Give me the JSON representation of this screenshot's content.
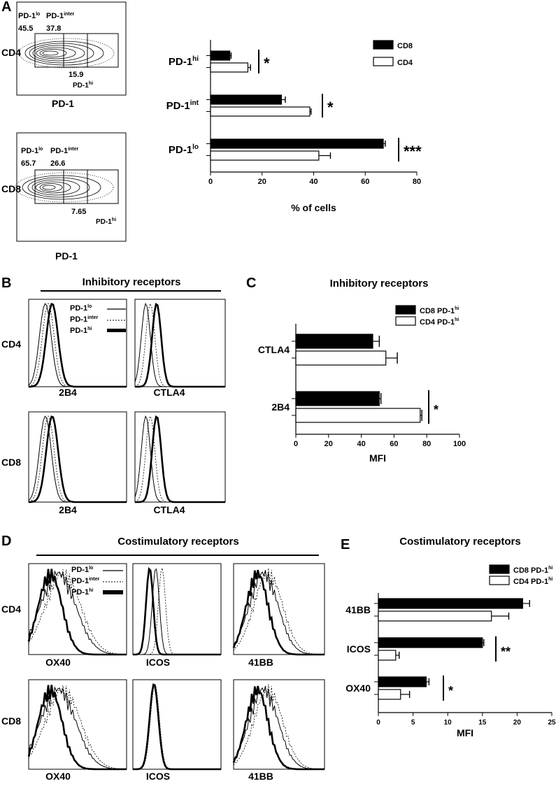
{
  "panels": {
    "A": {
      "letter": "A",
      "flow": {
        "cd4": {
          "row_label": "CD4",
          "x_label": "PD-1",
          "lo_label": "PD-1",
          "lo_sup": "lo",
          "lo_value": "45.5",
          "inter_label": "PD-1",
          "inter_sup": "inter",
          "inter_value": "37.8",
          "hi_value": "15.9",
          "hi_label": "PD-1",
          "hi_sup": "hi"
        },
        "cd8": {
          "row_label": "CD8",
          "x_label": "PD-1",
          "lo_label": "PD-1",
          "lo_sup": "lo",
          "lo_value": "65.7",
          "inter_label": "PD-1",
          "inter_sup": "inter",
          "inter_value": "26.6",
          "hi_value": "7.65",
          "hi_label": "PD-1",
          "hi_sup": "hi"
        }
      }
    },
    "B": {
      "letter": "B",
      "title": "Inhibitory receptors",
      "legend": [
        {
          "label": "PD-1",
          "sup": "lo",
          "style": "solid-thin"
        },
        {
          "label": "PD-1",
          "sup": "inter",
          "style": "dotted"
        },
        {
          "label": "PD-1",
          "sup": "hi",
          "style": "solid-thick"
        }
      ],
      "rows": [
        "CD4",
        "CD8"
      ],
      "cols": [
        "2B4",
        "CTLA4"
      ]
    },
    "C": {
      "letter": "C"
    },
    "D": {
      "letter": "D",
      "title": "Costimulatory receptors",
      "legend": [
        {
          "label": "PD-1",
          "sup": "lo",
          "style": "solid-thin"
        },
        {
          "label": "PD-1",
          "sup": "inter",
          "style": "dotted"
        },
        {
          "label": "PD-1",
          "sup": "hi",
          "style": "solid-thick"
        }
      ],
      "rows": [
        "CD4",
        "CD8"
      ],
      "cols": [
        "OX40",
        "ICOS",
        "41BB"
      ]
    },
    "E": {
      "letter": "E"
    }
  },
  "chart_data": [
    {
      "id": "A",
      "type": "bar",
      "orientation": "horizontal",
      "title": "",
      "xlabel": "% of cells",
      "xlim": [
        0,
        80
      ],
      "xticks": [
        0,
        20,
        40,
        60,
        80
      ],
      "categories": [
        {
          "label": "PD-1",
          "sup": "hi"
        },
        {
          "label": "PD-1",
          "sup": "int"
        },
        {
          "label": "PD-1",
          "sup": "lo"
        }
      ],
      "series": [
        {
          "name": "CD8",
          "color": "#000000",
          "values": [
            7.5,
            27.5,
            67.0
          ],
          "errors": [
            0.5,
            1.5,
            0.8
          ]
        },
        {
          "name": "CD4",
          "color": "#ffffff",
          "values": [
            14.5,
            38.5,
            42.0
          ],
          "errors": [
            1.0,
            0.5,
            4.5
          ]
        }
      ],
      "significance": [
        "*",
        "*",
        "***"
      ],
      "legend_position": "top-right"
    },
    {
      "id": "C",
      "type": "bar",
      "orientation": "horizontal",
      "title": "Inhibitory receptors",
      "xlabel": "MFI",
      "xlim": [
        0,
        100
      ],
      "xticks": [
        0,
        20,
        40,
        60,
        80,
        100
      ],
      "categories": [
        {
          "label": "CTLA4",
          "sup": ""
        },
        {
          "label": "2B4",
          "sup": ""
        }
      ],
      "series": [
        {
          "name": "CD8 PD-1",
          "sup": "hi",
          "color": "#000000",
          "values": [
            47,
            51
          ],
          "errors": [
            4,
            1
          ]
        },
        {
          "name": "CD4 PD-1",
          "sup": "hi",
          "color": "#ffffff",
          "values": [
            55,
            76
          ],
          "errors": [
            7,
            1
          ]
        }
      ],
      "significance": [
        "",
        "*"
      ],
      "legend_position": "top-right"
    },
    {
      "id": "E",
      "type": "bar",
      "orientation": "horizontal",
      "title": "Costimulatory receptors",
      "xlabel": "MFI",
      "xlim": [
        0,
        25
      ],
      "xticks": [
        0,
        5,
        10,
        15,
        20,
        25
      ],
      "categories": [
        {
          "label": "41BB",
          "sup": ""
        },
        {
          "label": "ICOS",
          "sup": ""
        },
        {
          "label": "OX40",
          "sup": ""
        }
      ],
      "series": [
        {
          "name": "CD8 PD-1",
          "sup": "hi",
          "color": "#000000",
          "values": [
            20.8,
            15.0,
            6.9
          ],
          "errors": [
            1.0,
            0.2,
            0.4
          ]
        },
        {
          "name": "CD4 PD-1",
          "sup": "hi",
          "color": "#ffffff",
          "values": [
            16.3,
            2.5,
            3.2
          ],
          "errors": [
            2.5,
            0.5,
            1.3
          ]
        }
      ],
      "significance": [
        "",
        "**",
        "*"
      ],
      "legend_position": "top-right"
    }
  ]
}
